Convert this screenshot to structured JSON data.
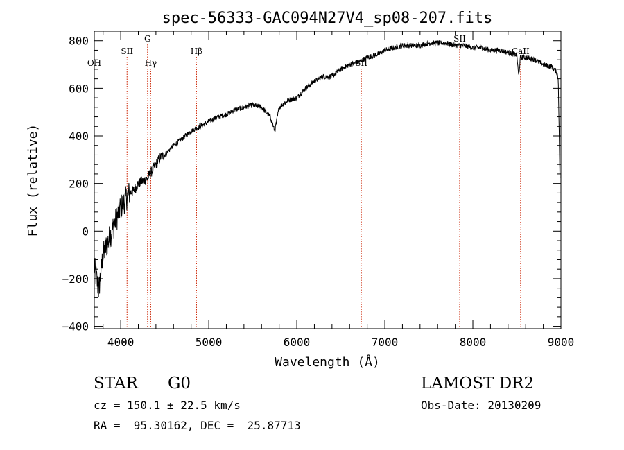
{
  "chart_data": {
    "type": "line",
    "title": "spec-56333-GAC094N27V4_sp08-207.fits",
    "xlabel": "Wavelength (Å)",
    "ylabel": "Flux (relative)",
    "xlim": [
      3700,
      9000
    ],
    "ylim": [
      -410,
      840
    ],
    "x_ticks": [
      4000,
      5000,
      6000,
      7000,
      8000,
      9000
    ],
    "x_tick_labels": [
      "4000",
      "5000",
      "6000",
      "7000",
      "8000",
      "9000"
    ],
    "y_ticks": [
      -400,
      -200,
      0,
      200,
      400,
      600,
      800
    ],
    "y_tick_labels": [
      "−400",
      "−200",
      "0",
      "200",
      "400",
      "600",
      "800"
    ],
    "series": [
      {
        "x": [
          3700,
          3750,
          3800,
          3850,
          3900,
          3950,
          4000,
          4050,
          4100,
          4150,
          4200,
          4250,
          4300,
          4350,
          4400,
          4450,
          4500,
          4600,
          4700,
          4800,
          4900,
          5000,
          5100,
          5200,
          5300,
          5400,
          5500,
          5600,
          5700,
          5750,
          5800,
          5900,
          6000,
          6100,
          6200,
          6300,
          6400,
          6500,
          6600,
          6700,
          6800,
          6900,
          7000,
          7100,
          7200,
          7300,
          7400,
          7500,
          7600,
          7700,
          7800,
          7900,
          8000,
          8100,
          8200,
          8300,
          8400,
          8500,
          8520,
          8540,
          8600,
          8700,
          8800,
          8900,
          8950,
          8970,
          8990
        ],
        "y": [
          -150,
          -250,
          -100,
          -50,
          0,
          50,
          100,
          130,
          160,
          170,
          200,
          210,
          220,
          250,
          280,
          310,
          320,
          360,
          390,
          420,
          440,
          460,
          480,
          490,
          510,
          520,
          530,
          520,
          480,
          420,
          520,
          550,
          560,
          600,
          630,
          650,
          650,
          680,
          700,
          710,
          730,
          740,
          760,
          770,
          780,
          780,
          780,
          790,
          790,
          790,
          780,
          780,
          770,
          770,
          760,
          760,
          750,
          740,
          650,
          730,
          730,
          720,
          700,
          690,
          670,
          640,
          200
        ]
      }
    ],
    "line_markers": [
      {
        "label": "OH",
        "x": 3700,
        "row": "low"
      },
      {
        "label": "SII",
        "x": 4072,
        "row": "mid"
      },
      {
        "label": "G",
        "x": 4305,
        "row": "top"
      },
      {
        "label": "Hγ",
        "x": 4341,
        "row": "low"
      },
      {
        "label": "Hβ",
        "x": 4861,
        "row": "mid"
      },
      {
        "label": "SII",
        "x": 6733,
        "row": "low"
      },
      {
        "label": "SII",
        "x": 7850,
        "row": "top"
      },
      {
        "label": "CaII",
        "x": 8542,
        "row": "mid"
      }
    ],
    "grid": false,
    "legend": "none"
  },
  "info": {
    "object_class": "STAR",
    "subclass": "G0",
    "survey": "LAMOST DR2",
    "cz": "cz = 150.1 ± 22.5 km/s",
    "obs_date": "Obs-Date: 20130209",
    "coords": "RA =  95.30162, DEC =  25.87713"
  },
  "colors": {
    "spectrum": "#000000",
    "marker_line": "#cc2200",
    "text": "#000000"
  }
}
